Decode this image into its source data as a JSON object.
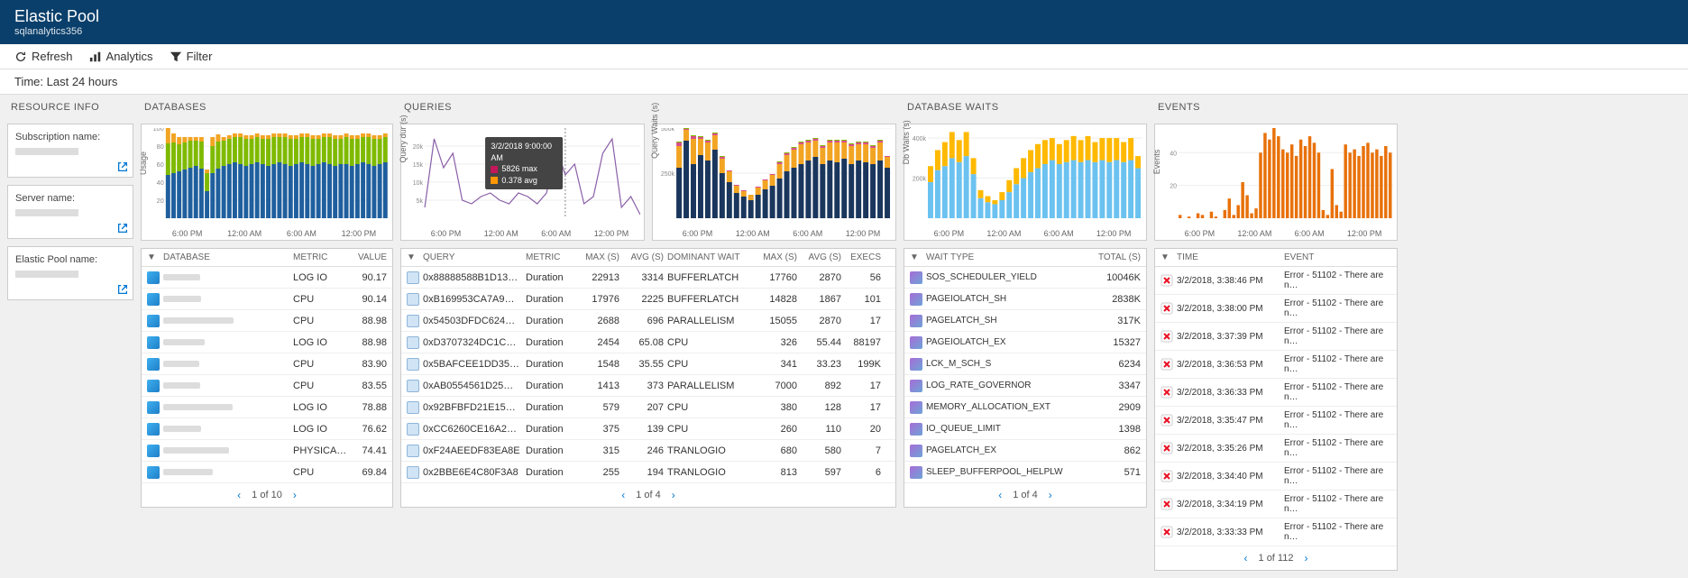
{
  "header": {
    "title": "Elastic Pool",
    "subtitle": "sqlanalytics356"
  },
  "toolbar": {
    "refresh": "Refresh",
    "analytics": "Analytics",
    "filter": "Filter"
  },
  "timebar": "Time: Last 24 hours",
  "resource_info": {
    "title": "RESOURCE INFO",
    "items": [
      {
        "label": "Subscription name:"
      },
      {
        "label": "Server name:"
      },
      {
        "label": "Elastic Pool name:"
      }
    ]
  },
  "colors": {
    "header_bg": "#0a3f6b",
    "blue": "#1f5f9e",
    "green": "#7fba00",
    "orange": "#f2a423",
    "purple": "#8a5fa8",
    "skyblue": "#6bc2f0",
    "gold": "#ffb900",
    "dark_orange": "#e8710a",
    "red": "#e81123",
    "ext_icon": "#0078d4"
  },
  "x_ticks": [
    "6:00 PM",
    "12:00 AM",
    "6:00 AM",
    "12:00 PM"
  ],
  "databases": {
    "title": "DATABASES",
    "chart": {
      "ylabel": "Usage",
      "ymax": 100,
      "yticks": [
        20,
        40,
        60,
        80,
        100
      ],
      "bars": [
        {
          "b": 48,
          "g": 35,
          "o": 17
        },
        {
          "b": 50,
          "g": 34,
          "o": 10
        },
        {
          "b": 52,
          "g": 30,
          "o": 8
        },
        {
          "b": 54,
          "g": 30,
          "o": 6
        },
        {
          "b": 56,
          "g": 30,
          "o": 4
        },
        {
          "b": 58,
          "g": 28,
          "o": 4
        },
        {
          "b": 55,
          "g": 30,
          "o": 5
        },
        {
          "b": 30,
          "g": 20,
          "o": 4
        },
        {
          "b": 50,
          "g": 30,
          "o": 10
        },
        {
          "b": 55,
          "g": 30,
          "o": 8
        },
        {
          "b": 58,
          "g": 28,
          "o": 4
        },
        {
          "b": 60,
          "g": 28,
          "o": 4
        },
        {
          "b": 62,
          "g": 28,
          "o": 4
        },
        {
          "b": 60,
          "g": 30,
          "o": 4
        },
        {
          "b": 58,
          "g": 30,
          "o": 4
        },
        {
          "b": 60,
          "g": 28,
          "o": 4
        },
        {
          "b": 62,
          "g": 28,
          "o": 4
        },
        {
          "b": 60,
          "g": 28,
          "o": 4
        },
        {
          "b": 58,
          "g": 30,
          "o": 4
        },
        {
          "b": 60,
          "g": 30,
          "o": 4
        },
        {
          "b": 62,
          "g": 28,
          "o": 4
        },
        {
          "b": 60,
          "g": 30,
          "o": 4
        },
        {
          "b": 58,
          "g": 30,
          "o": 4
        },
        {
          "b": 60,
          "g": 28,
          "o": 4
        },
        {
          "b": 62,
          "g": 28,
          "o": 4
        },
        {
          "b": 60,
          "g": 30,
          "o": 4
        },
        {
          "b": 58,
          "g": 30,
          "o": 4
        },
        {
          "b": 60,
          "g": 28,
          "o": 4
        },
        {
          "b": 62,
          "g": 28,
          "o": 4
        },
        {
          "b": 60,
          "g": 30,
          "o": 4
        },
        {
          "b": 58,
          "g": 30,
          "o": 4
        },
        {
          "b": 60,
          "g": 28,
          "o": 4
        },
        {
          "b": 60,
          "g": 30,
          "o": 4
        },
        {
          "b": 58,
          "g": 30,
          "o": 4
        },
        {
          "b": 60,
          "g": 28,
          "o": 4
        },
        {
          "b": 62,
          "g": 28,
          "o": 4
        },
        {
          "b": 60,
          "g": 30,
          "o": 4
        },
        {
          "b": 58,
          "g": 30,
          "o": 4
        },
        {
          "b": 60,
          "g": 28,
          "o": 4
        },
        {
          "b": 62,
          "g": 28,
          "o": 4
        }
      ]
    },
    "columns": [
      "DATABASE",
      "METRIC",
      "VALUE"
    ],
    "rows": [
      {
        "metric": "LOG IO",
        "value": "90.17"
      },
      {
        "metric": "CPU",
        "value": "90.14"
      },
      {
        "metric": "CPU",
        "value": "88.98"
      },
      {
        "metric": "LOG IO",
        "value": "88.98"
      },
      {
        "metric": "CPU",
        "value": "83.90"
      },
      {
        "metric": "CPU",
        "value": "83.55"
      },
      {
        "metric": "LOG IO",
        "value": "78.88"
      },
      {
        "metric": "LOG IO",
        "value": "76.62"
      },
      {
        "metric": "PHYSICA…",
        "value": "74.41"
      },
      {
        "metric": "CPU",
        "value": "69.84"
      }
    ],
    "pager": "1 of 10"
  },
  "queries": {
    "title": "QUERIES",
    "chart_duration": {
      "ylabel": "Query dur (s)",
      "ymax": 25000,
      "yticks": [
        5000,
        10000,
        15000,
        20000
      ],
      "ytick_labels": [
        "5k",
        "10k",
        "15k",
        "20k"
      ],
      "line": [
        3000,
        22000,
        14000,
        18000,
        5000,
        4000,
        6000,
        7000,
        5000,
        4000,
        7000,
        6000,
        4000,
        7000,
        20000,
        12000,
        15000,
        4000,
        6000,
        18000,
        22000,
        3000,
        6000,
        1000
      ],
      "tooltip": {
        "time": "3/2/2018 9:00:00 AM",
        "max": "5826  max",
        "avg": "0.378  avg",
        "max_color": "#c2185b",
        "avg_color": "#ff9800",
        "x_index": 15
      }
    },
    "chart_waits": {
      "ylabel": "Query Waits (s)",
      "ymax": 500000,
      "yticks": [
        250000,
        500000
      ],
      "ytick_labels": [
        "250k",
        "500k"
      ],
      "bars": [
        {
          "n": 280,
          "o": 120,
          "p": 20,
          "g": 5
        },
        {
          "n": 430,
          "o": 60,
          "p": 5,
          "g": 5
        },
        {
          "n": 300,
          "o": 140,
          "p": 15,
          "g": 5
        },
        {
          "n": 350,
          "o": 90,
          "p": 10,
          "g": 5
        },
        {
          "n": 320,
          "o": 100,
          "p": 10,
          "g": 5
        },
        {
          "n": 380,
          "o": 80,
          "p": 10,
          "g": 5
        },
        {
          "n": 250,
          "o": 80,
          "p": 10,
          "g": 5
        },
        {
          "n": 200,
          "o": 60,
          "p": 5,
          "g": 0
        },
        {
          "n": 140,
          "o": 40,
          "p": 5,
          "g": 0
        },
        {
          "n": 120,
          "o": 30,
          "p": 5,
          "g": 0
        },
        {
          "n": 100,
          "o": 30,
          "p": 0,
          "g": 0
        },
        {
          "n": 130,
          "o": 40,
          "p": 5,
          "g": 0
        },
        {
          "n": 160,
          "o": 50,
          "p": 5,
          "g": 0
        },
        {
          "n": 180,
          "o": 60,
          "p": 5,
          "g": 0
        },
        {
          "n": 220,
          "o": 80,
          "p": 10,
          "g": 5
        },
        {
          "n": 260,
          "o": 90,
          "p": 10,
          "g": 5
        },
        {
          "n": 280,
          "o": 100,
          "p": 10,
          "g": 5
        },
        {
          "n": 300,
          "o": 110,
          "p": 10,
          "g": 5
        },
        {
          "n": 320,
          "o": 100,
          "p": 10,
          "g": 5
        },
        {
          "n": 340,
          "o": 90,
          "p": 10,
          "g": 5
        },
        {
          "n": 300,
          "o": 90,
          "p": 10,
          "g": 5
        },
        {
          "n": 320,
          "o": 100,
          "p": 10,
          "g": 5
        },
        {
          "n": 310,
          "o": 110,
          "p": 10,
          "g": 5
        },
        {
          "n": 330,
          "o": 90,
          "p": 10,
          "g": 5
        },
        {
          "n": 300,
          "o": 100,
          "p": 10,
          "g": 5
        },
        {
          "n": 320,
          "o": 90,
          "p": 10,
          "g": 5
        },
        {
          "n": 310,
          "o": 100,
          "p": 10,
          "g": 5
        },
        {
          "n": 300,
          "o": 90,
          "p": 10,
          "g": 5
        },
        {
          "n": 320,
          "o": 100,
          "p": 10,
          "g": 5
        },
        {
          "n": 280,
          "o": 60,
          "p": 5,
          "g": 0
        }
      ]
    },
    "columns": [
      "QUERY",
      "METRIC",
      "MAX (S)",
      "AVG (S)",
      "DOMINANT WAIT",
      "MAX (S)",
      "AVG (S)",
      "EXECS"
    ],
    "rows": [
      {
        "q": "0x88888588B1D13…",
        "m": "Duration",
        "mx": "22913",
        "av": "3314",
        "dw": "BUFFERLATCH",
        "mx2": "17760",
        "av2": "2870",
        "ex": "56"
      },
      {
        "q": "0xB169953CA7A9…",
        "m": "Duration",
        "mx": "17976",
        "av": "2225",
        "dw": "BUFFERLATCH",
        "mx2": "14828",
        "av2": "1867",
        "ex": "101"
      },
      {
        "q": "0x54503DFDC624…",
        "m": "Duration",
        "mx": "2688",
        "av": "696",
        "dw": "PARALLELISM",
        "mx2": "15055",
        "av2": "2870",
        "ex": "17"
      },
      {
        "q": "0xD3707324DC1C…",
        "m": "Duration",
        "mx": "2454",
        "av": "65.08",
        "dw": "CPU",
        "mx2": "326",
        "av2": "55.44",
        "ex": "88197"
      },
      {
        "q": "0x5BAFCEE1DD35…",
        "m": "Duration",
        "mx": "1548",
        "av": "35.55",
        "dw": "CPU",
        "mx2": "341",
        "av2": "33.23",
        "ex": "199K"
      },
      {
        "q": "0xAB0554561D25…",
        "m": "Duration",
        "mx": "1413",
        "av": "373",
        "dw": "PARALLELISM",
        "mx2": "7000",
        "av2": "892",
        "ex": "17"
      },
      {
        "q": "0x92BFBFD21E15…",
        "m": "Duration",
        "mx": "579",
        "av": "207",
        "dw": "CPU",
        "mx2": "380",
        "av2": "128",
        "ex": "17"
      },
      {
        "q": "0xCC6260CE16A2…",
        "m": "Duration",
        "mx": "375",
        "av": "139",
        "dw": "CPU",
        "mx2": "260",
        "av2": "110",
        "ex": "20"
      },
      {
        "q": "0xF24AEEDF83EA8E",
        "m": "Duration",
        "mx": "315",
        "av": "246",
        "dw": "TRANLOGIO",
        "mx2": "680",
        "av2": "580",
        "ex": "7"
      },
      {
        "q": "0x2BBE6E4C80F3A8",
        "m": "Duration",
        "mx": "255",
        "av": "194",
        "dw": "TRANLOGIO",
        "mx2": "813",
        "av2": "597",
        "ex": "6"
      }
    ],
    "pager": "1 of 4"
  },
  "waits": {
    "title": "DATABASE WAITS",
    "chart": {
      "ylabel": "Db Waits (s)",
      "ymax": 450000,
      "yticks": [
        200000,
        400000
      ],
      "ytick_labels": [
        "200k",
        "400k"
      ],
      "bars": [
        {
          "s": 180,
          "g": 80
        },
        {
          "s": 240,
          "g": 100
        },
        {
          "s": 260,
          "g": 120
        },
        {
          "s": 300,
          "g": 130
        },
        {
          "s": 280,
          "g": 110
        },
        {
          "s": 310,
          "g": 120
        },
        {
          "s": 220,
          "g": 80
        },
        {
          "s": 100,
          "g": 40
        },
        {
          "s": 80,
          "g": 30
        },
        {
          "s": 70,
          "g": 20
        },
        {
          "s": 90,
          "g": 40
        },
        {
          "s": 130,
          "g": 60
        },
        {
          "s": 170,
          "g": 80
        },
        {
          "s": 200,
          "g": 100
        },
        {
          "s": 230,
          "g": 110
        },
        {
          "s": 250,
          "g": 120
        },
        {
          "s": 270,
          "g": 120
        },
        {
          "s": 290,
          "g": 110
        },
        {
          "s": 270,
          "g": 100
        },
        {
          "s": 280,
          "g": 110
        },
        {
          "s": 290,
          "g": 120
        },
        {
          "s": 280,
          "g": 110
        },
        {
          "s": 290,
          "g": 120
        },
        {
          "s": 280,
          "g": 100
        },
        {
          "s": 290,
          "g": 110
        },
        {
          "s": 280,
          "g": 120
        },
        {
          "s": 290,
          "g": 110
        },
        {
          "s": 280,
          "g": 100
        },
        {
          "s": 290,
          "g": 110
        },
        {
          "s": 250,
          "g": 60
        }
      ]
    },
    "columns": [
      "WAIT TYPE",
      "TOTAL (S)"
    ],
    "rows": [
      {
        "w": "SOS_SCHEDULER_YIELD",
        "t": "10046K"
      },
      {
        "w": "PAGEIOLATCH_SH",
        "t": "2838K"
      },
      {
        "w": "PAGELATCH_SH",
        "t": "317K"
      },
      {
        "w": "PAGEIOLATCH_EX",
        "t": "15327"
      },
      {
        "w": "LCK_M_SCH_S",
        "t": "6234"
      },
      {
        "w": "LOG_RATE_GOVERNOR",
        "t": "3347"
      },
      {
        "w": "MEMORY_ALLOCATION_EXT",
        "t": "2909"
      },
      {
        "w": "IO_QUEUE_LIMIT",
        "t": "1398"
      },
      {
        "w": "PAGELATCH_EX",
        "t": "862"
      },
      {
        "w": "SLEEP_BUFFERPOOL_HELPLW",
        "t": "571"
      }
    ],
    "pager": "1 of 4"
  },
  "events": {
    "title": "EVENTS",
    "chart": {
      "ylabel": "Events",
      "ymax": 55,
      "yticks": [
        20,
        40
      ],
      "bars": [
        2,
        0,
        1,
        0,
        3,
        2,
        0,
        4,
        1,
        0,
        5,
        12,
        2,
        8,
        22,
        14,
        3,
        6,
        40,
        52,
        48,
        55,
        50,
        42,
        40,
        45,
        38,
        48,
        44,
        50,
        46,
        40,
        5,
        2,
        30,
        8,
        4,
        45,
        40,
        42,
        38,
        44,
        46,
        40,
        42,
        38,
        44,
        40
      ]
    },
    "columns": [
      "TIME",
      "EVENT"
    ],
    "rows": [
      {
        "t": "3/2/2018, 3:38:46 PM",
        "e": "Error - 51102 - There are n…"
      },
      {
        "t": "3/2/2018, 3:38:00 PM",
        "e": "Error - 51102 - There are n…"
      },
      {
        "t": "3/2/2018, 3:37:39 PM",
        "e": "Error - 51102 - There are n…"
      },
      {
        "t": "3/2/2018, 3:36:53 PM",
        "e": "Error - 51102 - There are n…"
      },
      {
        "t": "3/2/2018, 3:36:33 PM",
        "e": "Error - 51102 - There are n…"
      },
      {
        "t": "3/2/2018, 3:35:47 PM",
        "e": "Error - 51102 - There are n…"
      },
      {
        "t": "3/2/2018, 3:35:26 PM",
        "e": "Error - 51102 - There are n…"
      },
      {
        "t": "3/2/2018, 3:34:40 PM",
        "e": "Error - 51102 - There are n…"
      },
      {
        "t": "3/2/2018, 3:34:19 PM",
        "e": "Error - 51102 - There are n…"
      },
      {
        "t": "3/2/2018, 3:33:33 PM",
        "e": "Error - 51102 - There are n…"
      }
    ],
    "pager": "1 of 112"
  }
}
